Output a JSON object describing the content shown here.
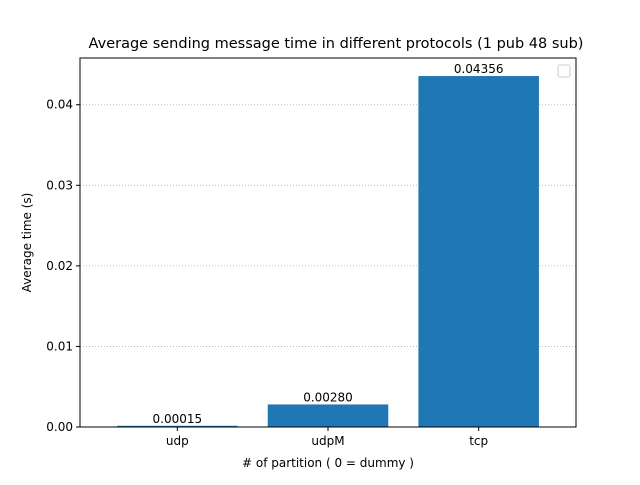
{
  "chart_data": {
    "type": "bar",
    "title": "Average sending message time in different protocols (1 pub 48 sub)",
    "xlabel": "# of partition ( 0 = dummy )",
    "ylabel": "Average time (s)",
    "categories": [
      "udp",
      "udpM",
      "tcp"
    ],
    "values": [
      0.00015,
      0.0028,
      0.04356
    ],
    "data_labels": [
      "0.00015",
      "0.00280",
      "0.04356"
    ],
    "ylim": [
      0,
      0.0458
    ],
    "yticks": [
      0,
      0.01,
      0.02,
      0.03,
      0.04
    ],
    "ytick_labels": [
      "0.00",
      "0.01",
      "0.02",
      "0.03",
      "0.04"
    ],
    "grid": "y-axis, dotted",
    "legend": "top-right, empty",
    "bar_color": "#1f77b4"
  }
}
